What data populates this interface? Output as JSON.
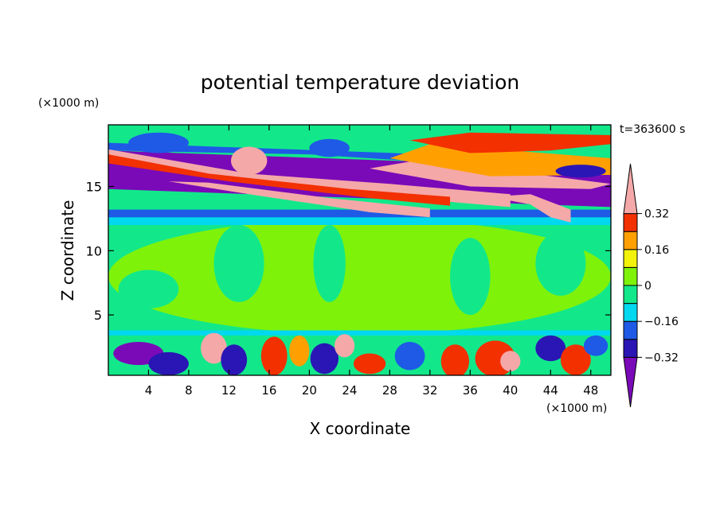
{
  "chart_data": {
    "type": "heatmap",
    "title": "potential temperature deviation",
    "xlabel": "X coordinate",
    "ylabel": "Z coordinate",
    "x_unit": "(×1000 m)",
    "y_unit": "(×1000 m)",
    "time_label": "t=363600 s",
    "xlim": [
      0,
      50
    ],
    "ylim": [
      0.3,
      19.8
    ],
    "x_ticks": [
      4,
      8,
      12,
      16,
      20,
      24,
      28,
      32,
      36,
      40,
      44,
      48
    ],
    "y_ticks": [
      5,
      10,
      15
    ],
    "colorbar": {
      "levels": [
        -0.4,
        -0.32,
        -0.24,
        -0.16,
        -0.08,
        0,
        0.08,
        0.16,
        0.24,
        0.32,
        0.4
      ],
      "labels": [
        "0.32",
        "0.16",
        "0",
        "−0.16",
        "−0.32"
      ],
      "label_values": [
        0.32,
        0.16,
        0,
        -0.16,
        -0.32
      ],
      "colors": [
        "#7a0ab8",
        "#2a16b4",
        "#1e5ae6",
        "#00d8f0",
        "#12e88a",
        "#7ff20a",
        "#f2f20a",
        "#ffa000",
        "#f33000",
        "#f5a8a8"
      ],
      "extend": "both"
    },
    "regions": [
      {
        "kind": "ellipse",
        "cx": 25,
        "cy": 8,
        "rx": 25,
        "ry": 4.5,
        "level": 0.02
      },
      {
        "kind": "ellipse",
        "cx": 4,
        "cy": 7,
        "rx": 3,
        "ry": 1.5,
        "level": -0.02
      },
      {
        "kind": "ellipse",
        "cx": 13,
        "cy": 9,
        "rx": 2.5,
        "ry": 3,
        "level": -0.02
      },
      {
        "kind": "ellipse",
        "cx": 22,
        "cy": 9,
        "rx": 1.6,
        "ry": 3,
        "level": -0.02
      },
      {
        "kind": "ellipse",
        "cx": 36,
        "cy": 8,
        "rx": 2,
        "ry": 3,
        "level": -0.02
      },
      {
        "kind": "ellipse",
        "cx": 45,
        "cy": 9,
        "rx": 2.5,
        "ry": 2.5,
        "level": -0.02
      },
      {
        "kind": "band",
        "x0": 0,
        "x1": 50,
        "y0": 3.4,
        "y1": 3.8,
        "level": -0.1
      },
      {
        "kind": "band",
        "x0": 0,
        "x1": 50,
        "y0": 12,
        "y1": 12.6,
        "level": -0.1
      },
      {
        "kind": "band",
        "x0": 0,
        "x1": 50,
        "y0": 12.6,
        "y1": 13.2,
        "level": -0.2
      },
      {
        "kind": "poly",
        "pts": [
          [
            0,
            14.8
          ],
          [
            50,
            13.4
          ],
          [
            50,
            16.4
          ],
          [
            0,
            17.8
          ]
        ],
        "level": -0.36
      },
      {
        "kind": "poly",
        "pts": [
          [
            0,
            17.8
          ],
          [
            20,
            17.5
          ],
          [
            34,
            16.8
          ],
          [
            50,
            16.4
          ],
          [
            50,
            17
          ],
          [
            0,
            18.4
          ]
        ],
        "level": -0.2
      },
      {
        "kind": "poly",
        "pts": [
          [
            0,
            17.1
          ],
          [
            10,
            15.7
          ],
          [
            22,
            14.7
          ],
          [
            34,
            13.8
          ],
          [
            40,
            13.4
          ],
          [
            40,
            14.4
          ],
          [
            28,
            15.2
          ],
          [
            14,
            16
          ],
          [
            0,
            17.9
          ]
        ],
        "level": 0.4
      },
      {
        "kind": "poly",
        "pts": [
          [
            6,
            15.4
          ],
          [
            14,
            14.4
          ],
          [
            26,
            13
          ],
          [
            32,
            12.6
          ],
          [
            32,
            13.3
          ],
          [
            22,
            14.1
          ],
          [
            10,
            15.3
          ]
        ],
        "level": 0.4
      },
      {
        "kind": "poly",
        "pts": [
          [
            0,
            16.8
          ],
          [
            12,
            15.4
          ],
          [
            26,
            14.1
          ],
          [
            34,
            13.5
          ],
          [
            34,
            14.2
          ],
          [
            24,
            14.8
          ],
          [
            10,
            16
          ],
          [
            0,
            17.5
          ]
        ],
        "level": 0.3
      },
      {
        "kind": "poly",
        "pts": [
          [
            26,
            16.4
          ],
          [
            36,
            15
          ],
          [
            48,
            14.8
          ],
          [
            50,
            15.2
          ],
          [
            42,
            16
          ],
          [
            32,
            17.2
          ]
        ],
        "level": 0.4
      },
      {
        "kind": "poly",
        "pts": [
          [
            28,
            17.2
          ],
          [
            38,
            15.8
          ],
          [
            50,
            15.9
          ],
          [
            50,
            17.2
          ],
          [
            40,
            17.8
          ],
          [
            32,
            18.3
          ]
        ],
        "level": 0.2
      },
      {
        "kind": "poly",
        "pts": [
          [
            30,
            18.6
          ],
          [
            36,
            17.6
          ],
          [
            44,
            17.8
          ],
          [
            50,
            18.3
          ],
          [
            50,
            19
          ],
          [
            36,
            19.2
          ]
        ],
        "level": 0.3
      },
      {
        "kind": "poly",
        "pts": [
          [
            38,
            14.2
          ],
          [
            42,
            13.6
          ],
          [
            44,
            12.6
          ],
          [
            46,
            12.2
          ],
          [
            46,
            13.2
          ],
          [
            42,
            14.4
          ]
        ],
        "level": 0.34
      },
      {
        "kind": "ellipse",
        "cx": 5,
        "cy": 18.4,
        "rx": 3,
        "ry": 0.8,
        "level": -0.2
      },
      {
        "kind": "ellipse",
        "cx": 14,
        "cy": 17,
        "rx": 1.8,
        "ry": 1.1,
        "level": 0.4
      },
      {
        "kind": "ellipse",
        "cx": 22,
        "cy": 18,
        "rx": 2,
        "ry": 0.7,
        "level": -0.2
      },
      {
        "kind": "ellipse",
        "cx": 47,
        "cy": 16.2,
        "rx": 2.5,
        "ry": 0.5,
        "level": -0.32
      },
      {
        "kind": "ellipse",
        "cx": 3,
        "cy": 2,
        "rx": 2.5,
        "ry": 0.9,
        "level": -0.36
      },
      {
        "kind": "ellipse",
        "cx": 6,
        "cy": 1.2,
        "rx": 2,
        "ry": 0.9,
        "level": -0.32
      },
      {
        "kind": "ellipse",
        "cx": 10.5,
        "cy": 2.4,
        "rx": 1.3,
        "ry": 1.2,
        "level": 0.4
      },
      {
        "kind": "ellipse",
        "cx": 12.5,
        "cy": 1.5,
        "rx": 1.3,
        "ry": 1.2,
        "level": -0.32
      },
      {
        "kind": "ellipse",
        "cx": 16.5,
        "cy": 1.8,
        "rx": 1.3,
        "ry": 1.5,
        "level": 0.3
      },
      {
        "kind": "ellipse",
        "cx": 19,
        "cy": 2.2,
        "rx": 1,
        "ry": 1.2,
        "level": 0.22
      },
      {
        "kind": "ellipse",
        "cx": 21.5,
        "cy": 1.6,
        "rx": 1.4,
        "ry": 1.2,
        "level": -0.32
      },
      {
        "kind": "ellipse",
        "cx": 23.5,
        "cy": 2.6,
        "rx": 1,
        "ry": 0.9,
        "level": 0.4
      },
      {
        "kind": "ellipse",
        "cx": 26,
        "cy": 1.2,
        "rx": 1.6,
        "ry": 0.8,
        "level": 0.3
      },
      {
        "kind": "ellipse",
        "cx": 30,
        "cy": 1.8,
        "rx": 1.5,
        "ry": 1.1,
        "level": -0.2
      },
      {
        "kind": "ellipse",
        "cx": 34.5,
        "cy": 1.4,
        "rx": 1.4,
        "ry": 1.3,
        "level": 0.3
      },
      {
        "kind": "ellipse",
        "cx": 38.5,
        "cy": 1.6,
        "rx": 2,
        "ry": 1.4,
        "level": 0.3
      },
      {
        "kind": "ellipse",
        "cx": 40,
        "cy": 1.4,
        "rx": 1,
        "ry": 0.8,
        "level": 0.4
      },
      {
        "kind": "ellipse",
        "cx": 44,
        "cy": 2.4,
        "rx": 1.5,
        "ry": 1,
        "level": -0.32
      },
      {
        "kind": "ellipse",
        "cx": 46.5,
        "cy": 1.5,
        "rx": 1.5,
        "ry": 1.2,
        "level": 0.3
      },
      {
        "kind": "ellipse",
        "cx": 48.5,
        "cy": 2.6,
        "rx": 1.2,
        "ry": 0.8,
        "level": -0.2
      }
    ]
  }
}
